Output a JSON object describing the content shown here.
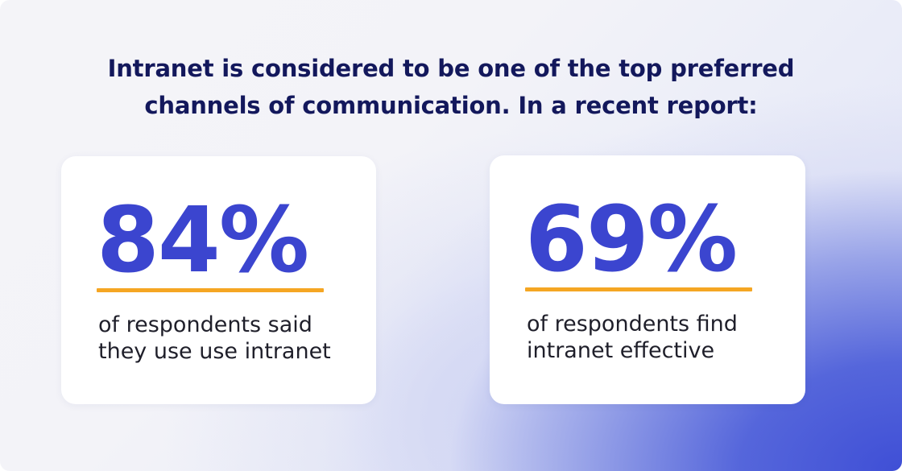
{
  "headline": {
    "line1": "Intranet is considered to be one of the top preferred",
    "line2": "channels of communication. In a recent report:"
  },
  "stats": [
    {
      "value": "84%",
      "desc_line1": "of respondents said",
      "desc_line2": "they use use intranet"
    },
    {
      "value": "69%",
      "desc_line1": "of respondents find",
      "desc_line2": "intranet effective"
    }
  ],
  "colors": {
    "headline": "#13185c",
    "stat": "#3b45cf",
    "underline": "#f5a623",
    "text": "#1f1f2a",
    "card": "#ffffff",
    "gradient_accent": "#3f4fd6"
  }
}
